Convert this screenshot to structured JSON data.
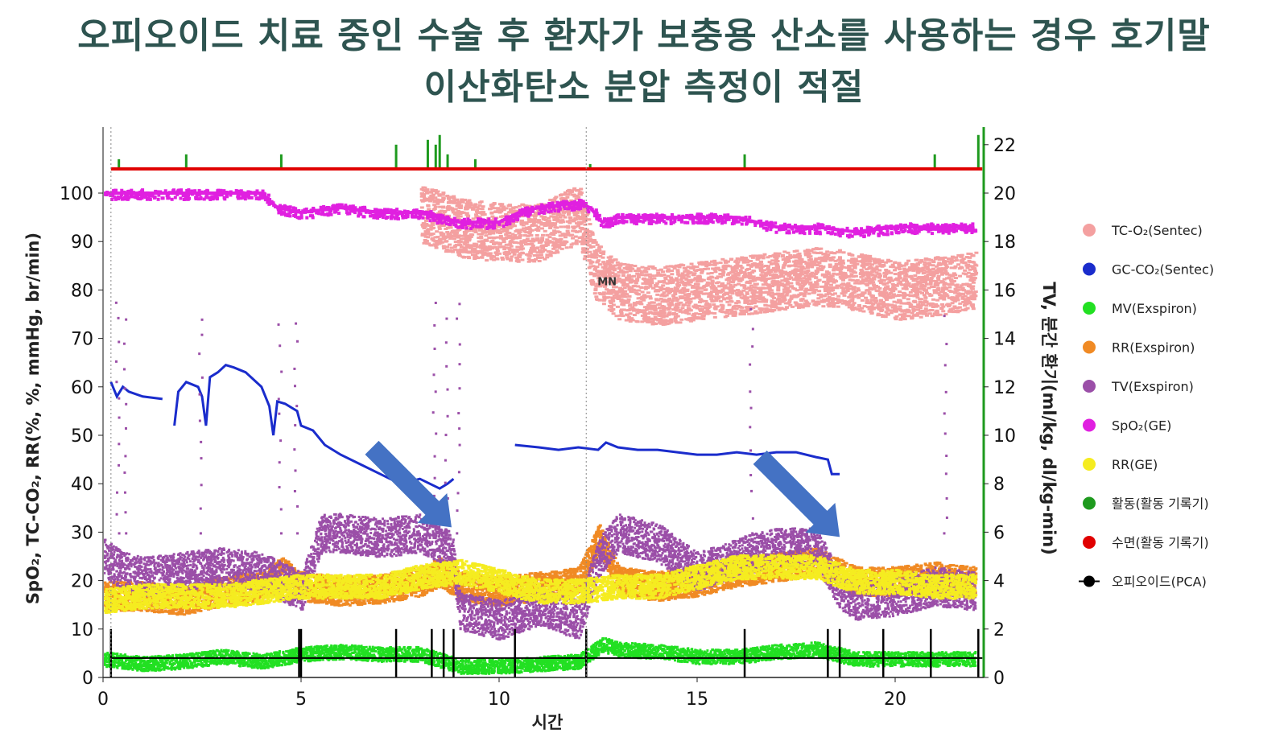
{
  "title_line1": "오피오이드 치료 중인 수술 후 환자가 보충용 산소를 사용하는 경우 호기말",
  "title_line2": "이산화탄소 분압 측정이 적절",
  "chart_data": {
    "type": "line",
    "xlabel": "시간",
    "ylabel_left": "SpO₂, TC-CO₂, RR(%, %, mmHg, br/min)",
    "ylabel_right": "TV, 분간 환기(ml/kg, dl/kg-min)",
    "xlim": [
      0,
      22.2
    ],
    "ylim_left": [
      0,
      115
    ],
    "ylim_right": [
      0,
      23
    ],
    "x_ticks": [
      0,
      5,
      10,
      15,
      20
    ],
    "y_ticks_left": [
      0,
      10,
      20,
      30,
      40,
      50,
      60,
      70,
      80,
      90,
      100
    ],
    "y_ticks_right": [
      0,
      2,
      4,
      6,
      8,
      10,
      12,
      14,
      16,
      18,
      20,
      22
    ],
    "annotation_mn": {
      "text": "MN",
      "x": 12.2
    },
    "arrows_point_to": [
      {
        "x": 8.8,
        "y": 31
      },
      {
        "x": 18.6,
        "y": 29
      }
    ],
    "legend_position": "right",
    "series": [
      {
        "name": "TC-O₂(Sentec)",
        "color": "#f4a0a0",
        "style": "band",
        "x": [
          8,
          9,
          10,
          11,
          12,
          12.4,
          13,
          14,
          15,
          16,
          17,
          18,
          19,
          20,
          21,
          22
        ],
        "values": [
          96,
          93,
          92,
          92,
          96,
          84,
          80,
          79,
          80,
          81,
          82,
          83,
          82,
          80,
          81,
          82
        ]
      },
      {
        "name": "GC-CO₂(Sentec)",
        "color": "#1a2ccc",
        "style": "line",
        "segments": [
          {
            "x": [
              0.2,
              0.35,
              0.5,
              0.65,
              1.0,
              1.5
            ],
            "values": [
              61,
              58,
              60,
              59,
              58,
              57.5
            ]
          },
          {
            "x": [
              1.8,
              1.9,
              2.1,
              2.4,
              2.5,
              2.6,
              2.7,
              2.9,
              3.1,
              3.3,
              3.6,
              4.0,
              4.2,
              4.3,
              4.4,
              4.6,
              4.9,
              5.0,
              5.3,
              5.6,
              6.0,
              6.5,
              7.0,
              7.5,
              8.0,
              8.5,
              8.7,
              8.85
            ],
            "values": [
              52,
              59,
              61,
              60,
              58,
              52,
              62,
              63,
              64.5,
              64,
              63,
              60,
              56,
              50,
              57,
              56.5,
              55,
              52,
              51,
              48,
              46,
              44,
              42,
              40,
              41,
              39,
              40,
              41
            ]
          },
          {
            "x": [
              10.4,
              11,
              11.5,
              12,
              12.5,
              12.7,
              13,
              13.5,
              14,
              14.5,
              15,
              15.5,
              16,
              16.5,
              17,
              17.5,
              18,
              18.3,
              18.4,
              18.6
            ],
            "values": [
              48,
              47.5,
              47,
              47.5,
              47,
              48.5,
              47.5,
              47,
              47,
              46.5,
              46,
              46,
              46.5,
              46,
              46.5,
              46.5,
              45.5,
              45,
              42,
              42
            ]
          }
        ]
      },
      {
        "name": "MV(Exspiron)",
        "color": "#22e022",
        "style": "band",
        "x": [
          0,
          1,
          2,
          3,
          4,
          5,
          6,
          7,
          8,
          9,
          10,
          11,
          12,
          12.6,
          13,
          14,
          15,
          16,
          17,
          18,
          19,
          20,
          21,
          22
        ],
        "values": [
          4,
          3,
          3.5,
          4.5,
          3.5,
          5,
          5.5,
          5,
          5,
          2.5,
          2.5,
          3,
          3.5,
          7,
          6,
          5.5,
          4.5,
          4.5,
          5.5,
          6,
          4,
          4,
          4,
          4
        ]
      },
      {
        "name": "RR(Exspiron)",
        "color": "#f08a24",
        "style": "band",
        "x": [
          0,
          1,
          2,
          3,
          4,
          4.5,
          5,
          6,
          7,
          8,
          8.5,
          9,
          10,
          11,
          12,
          12.5,
          13,
          14,
          15,
          16,
          17,
          18,
          19,
          20,
          21,
          22
        ],
        "values": [
          17,
          17,
          16,
          18,
          19,
          22,
          19,
          18,
          18.5,
          20,
          22,
          19,
          18,
          19,
          20,
          29,
          20,
          19,
          20,
          22,
          23,
          24,
          20,
          20,
          21,
          20
        ]
      },
      {
        "name": "TV(Exspiron)",
        "color": "#9b4fa8",
        "style": "band",
        "x": [
          0,
          0.5,
          1,
          2,
          3,
          4,
          5,
          5.5,
          6,
          7,
          8,
          8.8,
          9,
          10,
          11,
          12,
          12.5,
          13,
          14,
          15,
          16,
          17,
          18,
          18.6,
          19,
          20,
          21,
          22
        ],
        "values": [
          25,
          22,
          21,
          22,
          23,
          22,
          18,
          30,
          30,
          29,
          30,
          26,
          14,
          12,
          15,
          12,
          25,
          30,
          28,
          22,
          25,
          27,
          27,
          18,
          16,
          17,
          19,
          18
        ]
      },
      {
        "name": "SpO₂(GE)",
        "color": "#e020e0",
        "style": "line",
        "x": [
          0,
          1.5,
          2,
          3,
          4,
          4.4,
          5,
          6,
          7,
          8,
          9,
          10,
          10.5,
          11,
          12,
          12.3,
          12.6,
          13,
          14,
          15,
          16,
          17,
          18,
          19,
          20,
          21,
          22
        ],
        "values": [
          100,
          100,
          100,
          100,
          100,
          97,
          96,
          97,
          96,
          96,
          94,
          94,
          96,
          97,
          98,
          97,
          94,
          95,
          95,
          95,
          95,
          93,
          93,
          92,
          93,
          93,
          93
        ]
      },
      {
        "name": "RR(GE)",
        "color": "#f5ec20",
        "style": "band",
        "x": [
          0,
          1,
          2,
          3,
          4,
          5,
          6,
          7,
          8,
          9,
          10,
          11,
          12,
          13,
          14,
          15,
          16,
          17,
          18,
          19,
          20,
          21,
          22
        ],
        "values": [
          16,
          17,
          17,
          17,
          18,
          19,
          19,
          19,
          21,
          22,
          20,
          18,
          18,
          19,
          19,
          21,
          23,
          23,
          23,
          20,
          20,
          19,
          19
        ]
      },
      {
        "name": "활동(활동 기록기)",
        "color": "#1e9a1e",
        "style": "spikes",
        "x": [
          0.4,
          2.1,
          4.5,
          7.4,
          8.2,
          8.4,
          8.5,
          8.7,
          9.4,
          12.3,
          16.2,
          21.0,
          22.1
        ],
        "values": [
          107,
          108,
          108,
          110,
          111,
          110,
          112,
          108,
          107,
          106,
          108,
          108,
          112
        ]
      },
      {
        "name": "수면(활동 기록기)",
        "color": "#e00000",
        "style": "line",
        "x": [
          0.2,
          22.2
        ],
        "values": [
          105,
          105
        ]
      },
      {
        "name": "오피오이드(PCA)",
        "color": "#000000",
        "style": "events",
        "y": 4,
        "x": [
          0.2,
          4.95,
          5.0,
          7.4,
          8.3,
          8.6,
          8.85,
          10.4,
          12.2,
          16.2,
          18.3,
          18.6,
          19.7,
          20.9,
          22.1
        ]
      }
    ]
  },
  "arrow_color": "#4472c4"
}
